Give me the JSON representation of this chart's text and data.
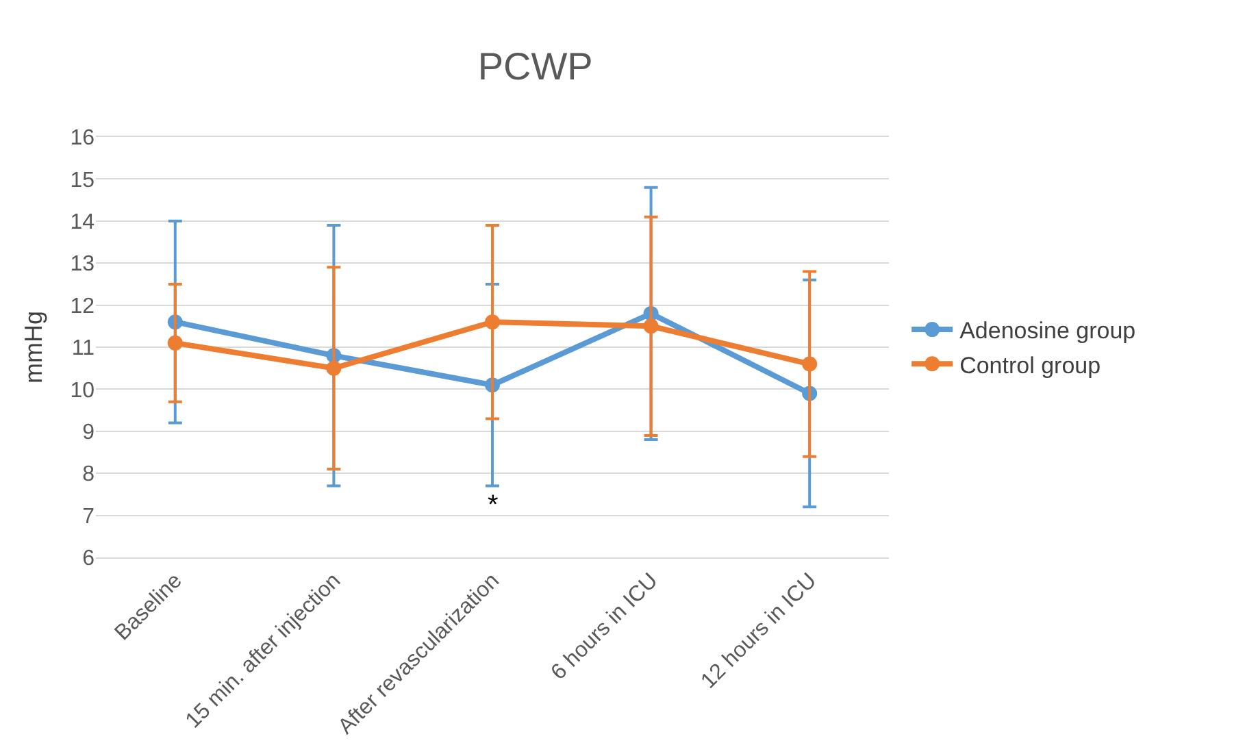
{
  "chart_data": {
    "type": "line",
    "title": "PCWP",
    "ylabel": "mmHg",
    "categories": [
      "Baseline",
      "15 min. after injection",
      "After revascularization",
      "6 hours in ICU",
      "12 hours in ICU"
    ],
    "series": [
      {
        "name": "Adenosine group",
        "color": "#5b9bd5",
        "values": [
          11.6,
          10.8,
          10.1,
          11.8,
          9.9
        ],
        "errors": [
          [
            9.2,
            14.0
          ],
          [
            7.7,
            13.9
          ],
          [
            7.7,
            12.5
          ],
          [
            8.8,
            14.8
          ],
          [
            7.2,
            12.6
          ]
        ]
      },
      {
        "name": "Control group",
        "color": "#ed7d31",
        "values": [
          11.1,
          10.5,
          11.6,
          11.5,
          10.6
        ],
        "errors": [
          [
            9.7,
            12.5
          ],
          [
            8.1,
            12.9
          ],
          [
            9.3,
            13.9
          ],
          [
            8.9,
            14.1
          ],
          [
            8.4,
            12.8
          ]
        ]
      }
    ],
    "ylim": [
      6,
      16
    ],
    "yticks": [
      6,
      7,
      8,
      9,
      10,
      11,
      12,
      13,
      14,
      15,
      16
    ],
    "grid": "y",
    "legend": "right",
    "marker": "circle",
    "line_style": "solid",
    "annotations": [
      "*"
    ]
  }
}
